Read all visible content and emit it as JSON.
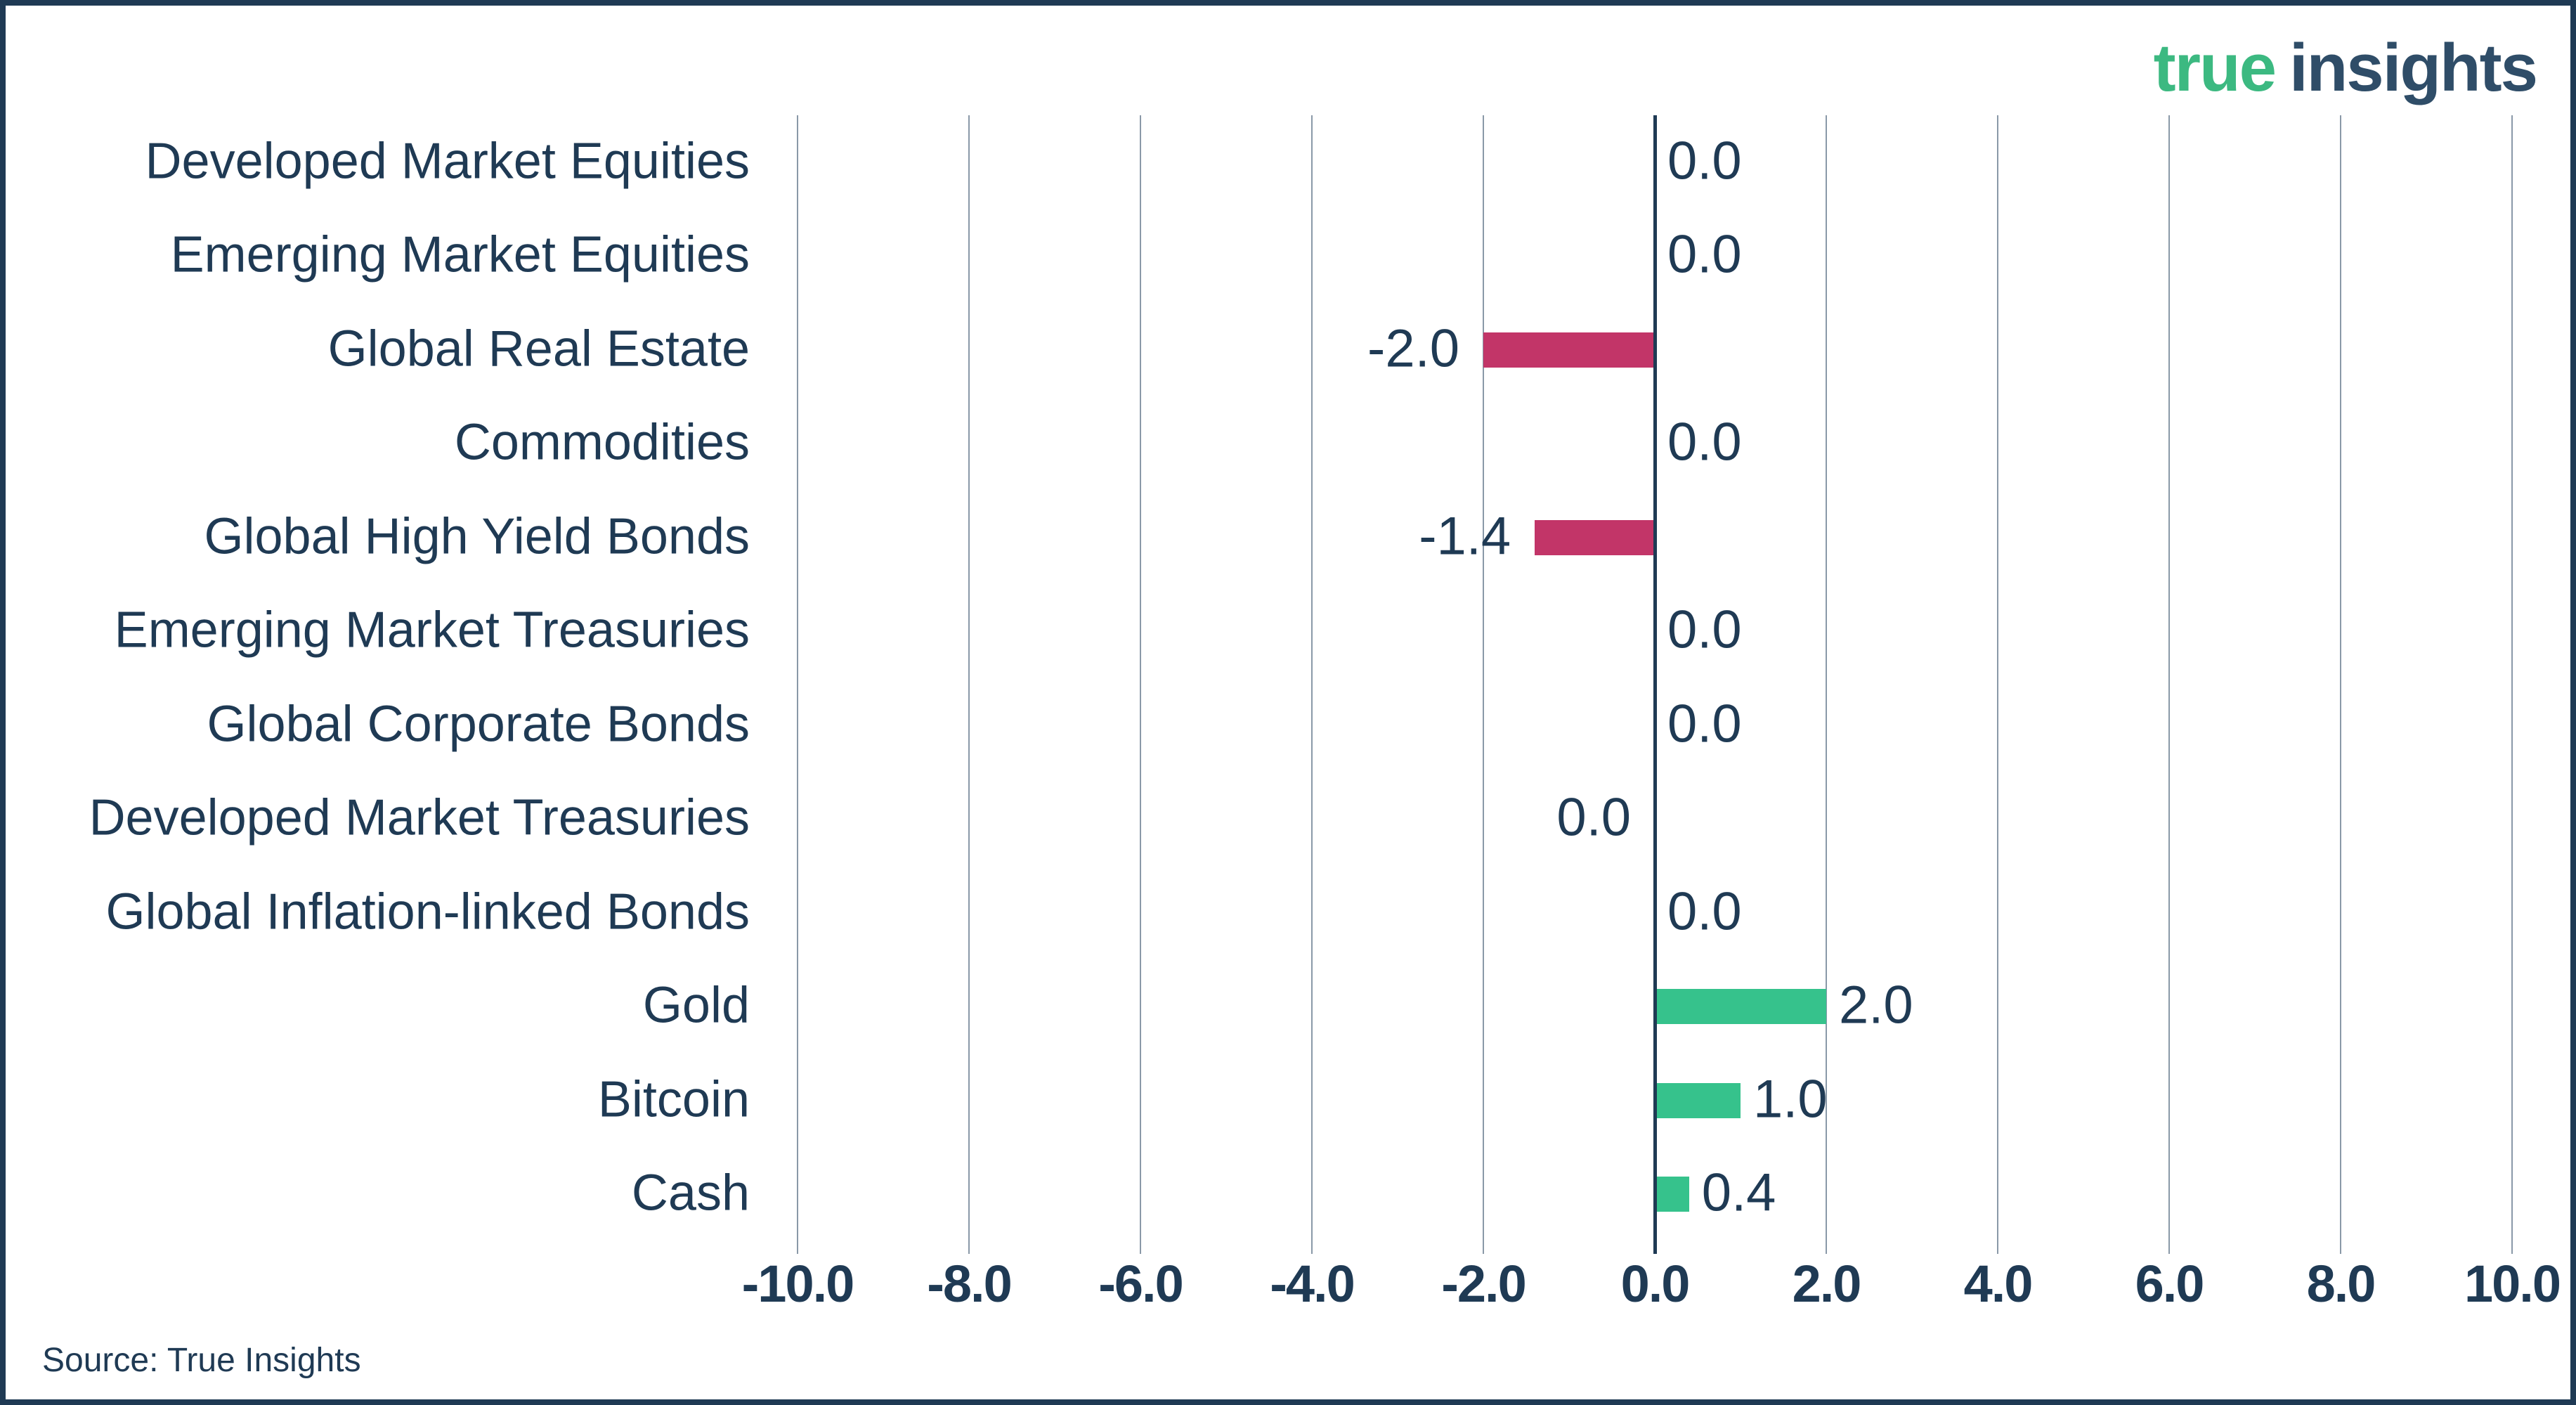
{
  "logo": {
    "part1": "true",
    "part2": "insights"
  },
  "footer": {
    "source": "Source: True Insights"
  },
  "chart_data": {
    "type": "bar",
    "orientation": "horizontal",
    "title": "",
    "categories": [
      "Developed Market Equities",
      "Emerging Market Equities",
      "Global Real Estate",
      "Commodities",
      "Global High Yield Bonds",
      "Emerging Market Treasuries",
      "Global Corporate Bonds",
      "Developed Market Treasuries",
      "Global Inflation-linked Bonds",
      "Gold",
      "Bitcoin",
      "Cash"
    ],
    "values": [
      0.0,
      0.0,
      -2.0,
      0.0,
      -1.4,
      0.0,
      0.0,
      0.0,
      0.0,
      2.0,
      1.0,
      0.4
    ],
    "bar_labels": [
      "0.0",
      "0.0",
      "-2.0",
      "0.0",
      "-1.4",
      "0.0",
      "0.0",
      "0.0",
      "0.0",
      "2.0",
      "1.0",
      "0.4"
    ],
    "bar_label_side": [
      "right",
      "right",
      "left",
      "right",
      "left",
      "right",
      "right",
      "left",
      "right",
      "right",
      "right",
      "right"
    ],
    "xlim": [
      -10,
      10
    ],
    "xticks": [
      -10,
      -8,
      -6,
      -4,
      -2,
      0,
      2,
      4,
      6,
      8,
      10
    ],
    "xtick_labels": [
      "-10.0",
      "-8.0",
      "-6.0",
      "-4.0",
      "-2.0",
      "0.0",
      "2.0",
      "4.0",
      "6.0",
      "8.0",
      "10.0"
    ],
    "grid": true,
    "legend_position": "none",
    "colors": {
      "positive_bar": "#36c28c",
      "negative_bar": "#c23568",
      "text": "#1f3a54",
      "gridline": "#8a99a8",
      "zero_line": "#1f3a54",
      "logo_green": "#3cb981",
      "logo_navy": "#2f4d68",
      "border": "#1f3a54"
    }
  }
}
